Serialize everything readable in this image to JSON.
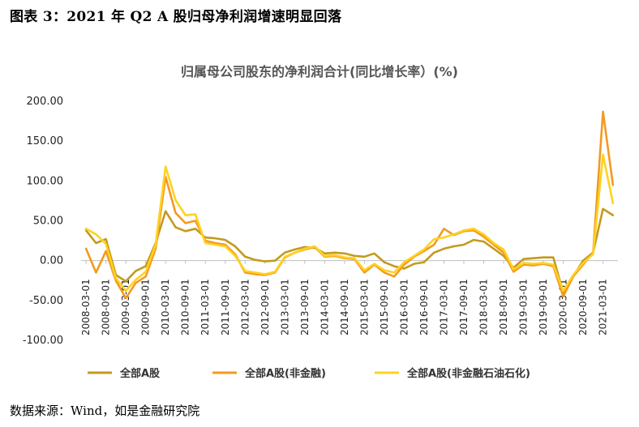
{
  "header": {
    "figure_title": "图表 3：2021 年 Q2 A 股归母净利润增速明显回落"
  },
  "footer": {
    "source": "数据来源：Wind，如是金融研究院"
  },
  "chart_data": {
    "type": "line",
    "title": "归属母公司股东的净利润合计(同比增长率）(%)",
    "xlabel": "",
    "ylabel": "",
    "ylim": [
      -100,
      200
    ],
    "yticks": [
      "200.00",
      "150.00",
      "100.00",
      "50.00",
      "0.00",
      "-50.00",
      "-100.00"
    ],
    "yticks_values": [
      200,
      150,
      100,
      50,
      0,
      -50,
      -100
    ],
    "grid": false,
    "legend_position": "bottom",
    "x": [
      "2008-03-01",
      "2008-06-01",
      "2008-09-01",
      "2008-12-01",
      "2009-03-01",
      "2009-06-01",
      "2009-09-01",
      "2009-12-01",
      "2010-03-01",
      "2010-06-01",
      "2010-09-01",
      "2010-12-01",
      "2011-03-01",
      "2011-06-01",
      "2011-09-01",
      "2011-12-01",
      "2012-03-01",
      "2012-06-01",
      "2012-09-01",
      "2012-12-01",
      "2013-03-01",
      "2013-06-01",
      "2013-09-01",
      "2013-12-01",
      "2014-03-01",
      "2014-06-01",
      "2014-09-01",
      "2014-12-01",
      "2015-03-01",
      "2015-06-01",
      "2015-09-01",
      "2015-12-01",
      "2016-03-01",
      "2016-06-01",
      "2016-09-01",
      "2016-12-01",
      "2017-03-01",
      "2017-06-01",
      "2017-09-01",
      "2017-12-01",
      "2018-03-01",
      "2018-06-01",
      "2018-09-01",
      "2018-12-01",
      "2019-03-01",
      "2019-06-01",
      "2019-09-01",
      "2019-12-01",
      "2020-03-01",
      "2020-06-01",
      "2020-09-01",
      "2020-12-01",
      "2021-03-01",
      "2021-06-01"
    ],
    "x_tick_labels": [
      "2008-03-01",
      "2008-09-01",
      "2009-03-01",
      "2009-09-01",
      "2010-03-01",
      "2010-09-01",
      "2011-03-01",
      "2011-09-01",
      "2012-03-01",
      "2012-09-01",
      "2013-03-01",
      "2013-09-01",
      "2014-03-01",
      "2014-09-01",
      "2015-03-01",
      "2015-09-01",
      "2016-03-01",
      "2016-09-01",
      "2017-03-01",
      "2017-09-01",
      "2018-03-01",
      "2018-09-01",
      "2019-03-01",
      "2019-09-01",
      "2020-03-01",
      "2020-09-01",
      "2021-03-01"
    ],
    "series": [
      {
        "name": "全部A股",
        "color": "#C39A1E",
        "values": [
          38,
          22,
          27,
          -18,
          -26,
          -13,
          -7,
          22,
          62,
          42,
          37,
          40,
          29,
          28,
          26,
          18,
          5,
          1,
          -1,
          0,
          10,
          14,
          17,
          16,
          9,
          10,
          9,
          6,
          5,
          9,
          -2,
          -7,
          -10,
          -4,
          -2,
          10,
          15,
          18,
          20,
          26,
          24,
          15,
          6,
          -9,
          2,
          3,
          4,
          4,
          -40,
          -20,
          0,
          10,
          65,
          57
        ]
      },
      {
        "name": "全部A股(非金融)",
        "color": "#F39A1F",
        "values": [
          15,
          -15,
          12,
          -25,
          -47,
          -28,
          -20,
          15,
          105,
          60,
          47,
          50,
          25,
          22,
          20,
          8,
          -15,
          -17,
          -18,
          -15,
          4,
          10,
          14,
          17,
          5,
          6,
          3,
          2,
          -15,
          -5,
          -15,
          -20,
          -5,
          5,
          12,
          20,
          40,
          32,
          37,
          38,
          30,
          20,
          10,
          -14,
          -5,
          -6,
          -4,
          -7,
          -45,
          -20,
          -5,
          10,
          187,
          95
        ]
      },
      {
        "name": "全部A股(非金融石油石化)",
        "color": "#FFD21F",
        "values": [
          40,
          33,
          21,
          -22,
          -38,
          -24,
          -14,
          20,
          118,
          76,
          57,
          58,
          22,
          20,
          18,
          6,
          -13,
          -15,
          -17,
          -14,
          5,
          10,
          15,
          18,
          6,
          7,
          4,
          3,
          -12,
          -4,
          -12,
          -15,
          -2,
          6,
          14,
          27,
          29,
          33,
          38,
          40,
          33,
          22,
          14,
          -11,
          -3,
          -4,
          -3,
          -5,
          -38,
          -18,
          -3,
          8,
          133,
          72
        ]
      }
    ]
  }
}
